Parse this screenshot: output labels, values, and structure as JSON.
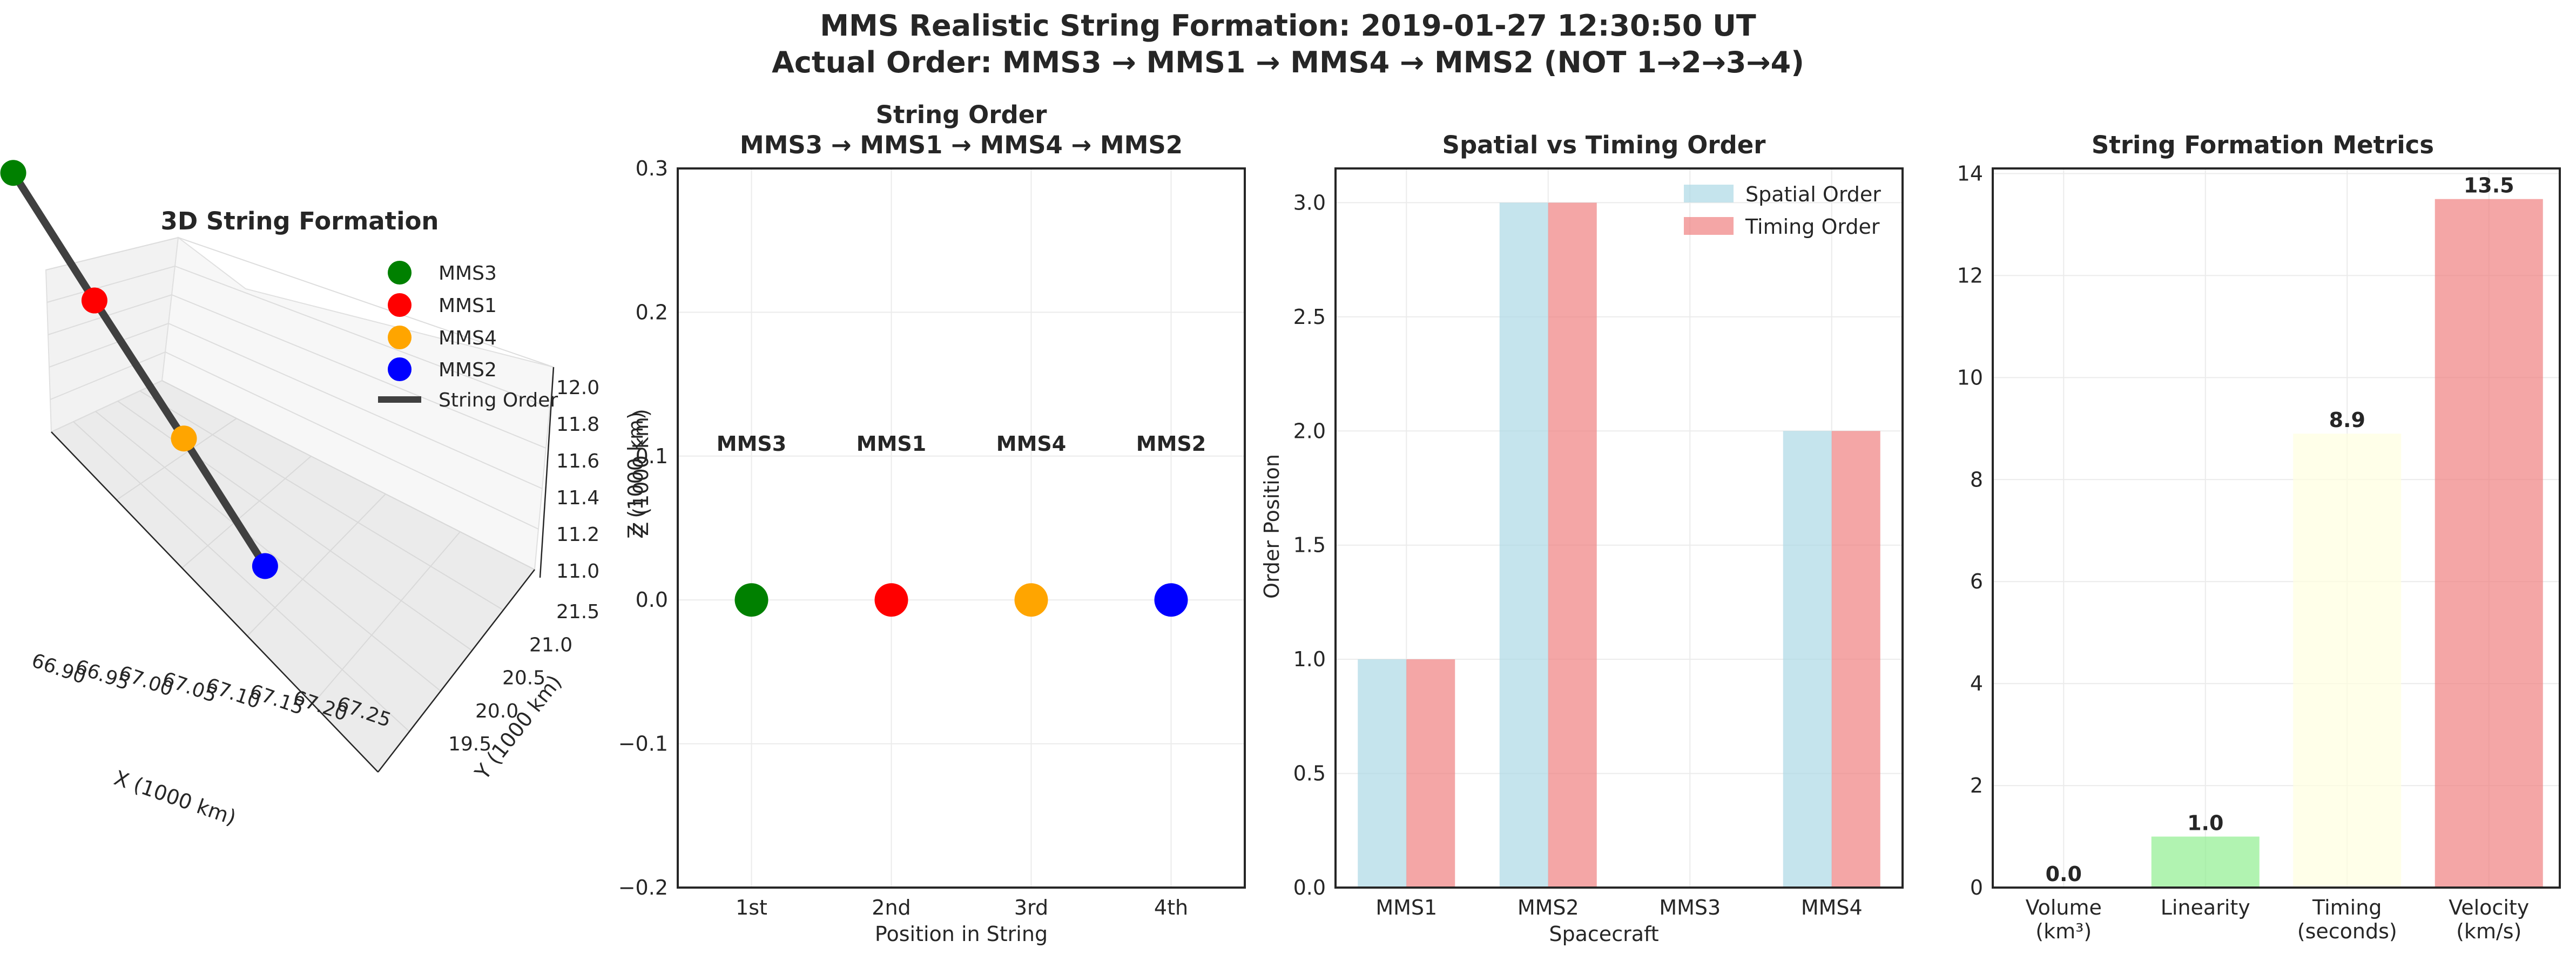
{
  "suptitle": {
    "line1": "MMS Realistic String Formation: 2019-01-27 12:30:50 UT",
    "line2": "Actual Order: MMS3 → MMS1 → MMS4 → MMS2 (NOT 1→2→3→4)"
  },
  "colors": {
    "MMS3": "#008000",
    "MMS1": "#ff0000",
    "MMS4": "#ffa500",
    "MMS2": "#0000ff",
    "string_line": "#404040",
    "spatial_bar": "#add8e6",
    "timing_bar": "#f08080",
    "metric_bars": [
      "#add8e6",
      "#90ee90",
      "#ffffe0",
      "#f08080"
    ]
  },
  "chart_data": [
    {
      "type": "scatter",
      "projection": "3d",
      "title": "3D String Formation",
      "xlabel": "X (1000 km)",
      "ylabel": "Y (1000 km)",
      "zlabel": "Z (1000 km)",
      "xticks": [
        "66.90",
        "66.95",
        "67.00",
        "67.05",
        "67.10",
        "67.15",
        "67.20",
        "67.25"
      ],
      "yticks": [
        "19.5",
        "20.0",
        "20.5",
        "21.0",
        "21.5"
      ],
      "zticks": [
        "11.0",
        "11.2",
        "11.4",
        "11.6",
        "11.8",
        "12.0"
      ],
      "xlim": [
        66.88,
        67.27
      ],
      "ylim": [
        19.3,
        21.7
      ],
      "zlim": [
        10.9,
        12.1
      ],
      "series": [
        {
          "name": "MMS3",
          "x": 66.92,
          "y": 20.6,
          "z": 11.95
        },
        {
          "name": "MMS1",
          "x": 67.02,
          "y": 20.6,
          "z": 11.72
        },
        {
          "name": "MMS4",
          "x": 67.13,
          "y": 20.6,
          "z": 11.48
        },
        {
          "name": "MMS2",
          "x": 67.23,
          "y": 20.6,
          "z": 11.25
        }
      ],
      "line_label": "String Order",
      "legend": "top-right"
    },
    {
      "type": "scatter",
      "title": "String Order",
      "subtitle": "MMS3 → MMS1 → MMS4 → MMS2",
      "xlabel": "Position in String",
      "ylabel": "Z (1000 km)",
      "categories": [
        "1st",
        "2nd",
        "3rd",
        "4th"
      ],
      "labels": [
        "MMS3",
        "MMS1",
        "MMS4",
        "MMS2"
      ],
      "values": [
        0,
        0,
        0,
        0
      ],
      "label_y": 0.1,
      "ylim": [
        -0.2,
        0.3
      ],
      "yticks": [
        "−0.2",
        "−0.1",
        "0.0",
        "0.1",
        "0.2",
        "0.3"
      ]
    },
    {
      "type": "bar",
      "title": "Spatial vs Timing Order",
      "xlabel": "Spacecraft",
      "ylabel": "Order Position",
      "categories": [
        "MMS1",
        "MMS2",
        "MMS3",
        "MMS4"
      ],
      "series": [
        {
          "name": "Spatial Order",
          "values": [
            1,
            3,
            0,
            2
          ]
        },
        {
          "name": "Timing Order",
          "values": [
            1,
            3,
            0,
            2
          ]
        }
      ],
      "ylim": [
        0,
        3.15
      ],
      "yticks": [
        "0.0",
        "0.5",
        "1.0",
        "1.5",
        "2.0",
        "2.5",
        "3.0"
      ],
      "legend": "top-right"
    },
    {
      "type": "bar",
      "title": "String Formation Metrics",
      "categories": [
        [
          "Volume",
          "(km³)"
        ],
        [
          "Linearity",
          ""
        ],
        [
          "Timing",
          "(seconds)"
        ],
        [
          "Velocity",
          "(km/s)"
        ]
      ],
      "values": [
        0.0,
        1.0,
        8.9,
        13.5
      ],
      "value_labels": [
        "0.0",
        "1.0",
        "8.9",
        "13.5"
      ],
      "ylim": [
        0,
        14.1
      ],
      "yticks": [
        "0",
        "2",
        "4",
        "6",
        "8",
        "10",
        "12",
        "14"
      ]
    }
  ]
}
